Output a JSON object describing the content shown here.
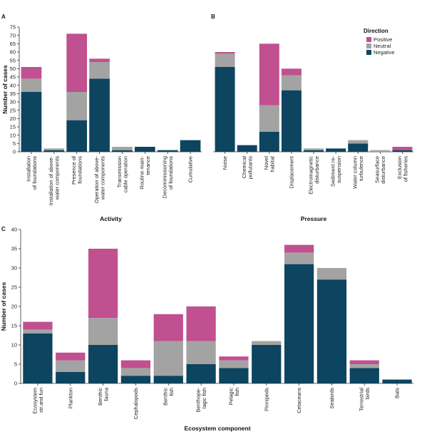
{
  "legend": {
    "title": "Direction",
    "items": [
      {
        "label": "Positive",
        "color": "#c0508f"
      },
      {
        "label": "Neutral",
        "color": "#a3a3a3"
      },
      {
        "label": "Negative",
        "color": "#0d4460"
      }
    ]
  },
  "chart_data": [
    {
      "panel": "A",
      "type": "bar",
      "stacked": true,
      "xlabel": "Activity",
      "ylabel": "Number of cases",
      "ylim": [
        0,
        75
      ],
      "yticks": [
        0,
        5,
        10,
        15,
        20,
        25,
        30,
        35,
        40,
        45,
        50,
        55,
        60,
        65,
        70,
        75
      ],
      "categories": [
        [
          "Installation",
          "of foundations"
        ],
        [
          "Installation of above-",
          "water components"
        ],
        [
          "Presence of",
          "foundations"
        ],
        [
          "Operation of above-",
          "water components"
        ],
        [
          "Transmission",
          "cable operation"
        ],
        [
          "Routine main-",
          "tenance"
        ],
        [
          "Decommissioning",
          "of foundations"
        ],
        [
          "Cumulative"
        ]
      ],
      "series": [
        {
          "name": "Negative",
          "values": [
            36,
            1,
            19,
            44,
            1,
            3,
            1,
            7
          ]
        },
        {
          "name": "Neutral",
          "values": [
            8,
            1,
            17,
            10,
            2,
            0,
            0,
            0
          ]
        },
        {
          "name": "Positive",
          "values": [
            7,
            0,
            35,
            2,
            0,
            0,
            0,
            0
          ]
        }
      ]
    },
    {
      "panel": "B",
      "type": "bar",
      "stacked": true,
      "xlabel": "Pressure",
      "ylabel": "",
      "ylim": [
        0,
        75
      ],
      "categories": [
        [
          "Noise"
        ],
        [
          "Chemical",
          "pollutants"
        ],
        [
          "Novel",
          "habitat"
        ],
        [
          "Displacement"
        ],
        [
          "Electromagnetic",
          "disturbance"
        ],
        [
          "Sediment re-",
          "suspension"
        ],
        [
          "Water column",
          "turbulence"
        ],
        [
          "Seasurface",
          "disturbance"
        ],
        [
          "Exclusion",
          "of fisheries"
        ]
      ],
      "series": [
        {
          "name": "Negative",
          "values": [
            51,
            4,
            12,
            37,
            1,
            2,
            5,
            0,
            1
          ]
        },
        {
          "name": "Neutral",
          "values": [
            8,
            0,
            16,
            9,
            1,
            0,
            2,
            1,
            0
          ]
        },
        {
          "name": "Positive",
          "values": [
            1,
            0,
            37,
            4,
            0,
            0,
            0,
            0,
            2
          ]
        }
      ]
    },
    {
      "panel": "C",
      "type": "bar",
      "stacked": true,
      "xlabel": "Ecosystem component",
      "ylabel": "Number of cases",
      "ylim": [
        0,
        40
      ],
      "yticks": [
        0,
        5,
        10,
        15,
        20,
        25,
        30,
        35,
        40
      ],
      "categories": [
        [
          "Ecosystem",
          "str.and fun"
        ],
        [
          "Plankton"
        ],
        [
          "Benthic",
          "fauna"
        ],
        [
          "Cephalopods"
        ],
        [
          "Benthic",
          "fish"
        ],
        [
          "Benthope-",
          "lagic fish"
        ],
        [
          "Pelagic",
          "fish"
        ],
        [
          "Pinnipeds"
        ],
        [
          "Cetaceans"
        ],
        [
          "Seabirds"
        ],
        [
          "Terrestrial",
          "birds"
        ],
        [
          "Bats"
        ]
      ],
      "series": [
        {
          "name": "Negative",
          "values": [
            13,
            3,
            10,
            2,
            2,
            5,
            4,
            10,
            31,
            27,
            4,
            1
          ]
        },
        {
          "name": "Neutral",
          "values": [
            1,
            3,
            7,
            2,
            9,
            6,
            2,
            1,
            3,
            3,
            1,
            0
          ]
        },
        {
          "name": "Positive",
          "values": [
            2,
            2,
            18,
            2,
            7,
            9,
            1,
            0,
            2,
            0,
            1,
            0
          ]
        }
      ]
    }
  ]
}
